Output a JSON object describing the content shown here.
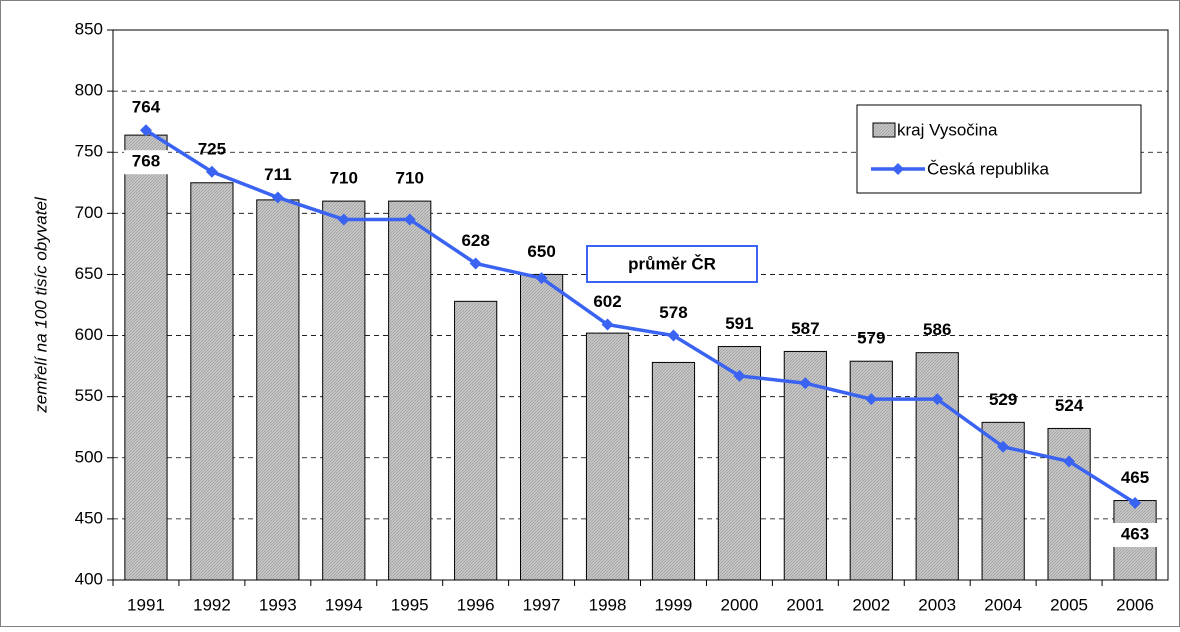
{
  "chart_data": {
    "type": "bar-line",
    "y_axis_label": "zemřelí na 100 tisíc obyvatel",
    "annotation": "průměr ČR",
    "categories": [
      "1991",
      "1992",
      "1993",
      "1994",
      "1995",
      "1996",
      "1997",
      "1998",
      "1999",
      "2000",
      "2001",
      "2002",
      "2003",
      "2004",
      "2005",
      "2006"
    ],
    "series": [
      {
        "name": "kraj Vysočina",
        "type": "bar",
        "color": "#c0c0c0",
        "values": [
          764,
          725,
          711,
          710,
          710,
          628,
          650,
          602,
          578,
          591,
          587,
          579,
          586,
          529,
          524,
          465
        ]
      },
      {
        "name": "Česká republika",
        "type": "line",
        "color": "#3a63f2",
        "values": [
          768,
          734,
          713,
          695,
          695,
          659,
          647,
          609,
          600,
          567,
          561,
          548,
          548,
          509,
          497,
          463
        ],
        "value_labels": [
          "768",
          null,
          null,
          null,
          null,
          null,
          null,
          null,
          null,
          null,
          null,
          null,
          null,
          null,
          null,
          "463"
        ]
      }
    ],
    "ylim": [
      400,
      850
    ],
    "yticks": [
      400,
      450,
      500,
      550,
      600,
      650,
      700,
      750,
      800,
      850
    ],
    "grid": true,
    "legend": "top-right"
  }
}
